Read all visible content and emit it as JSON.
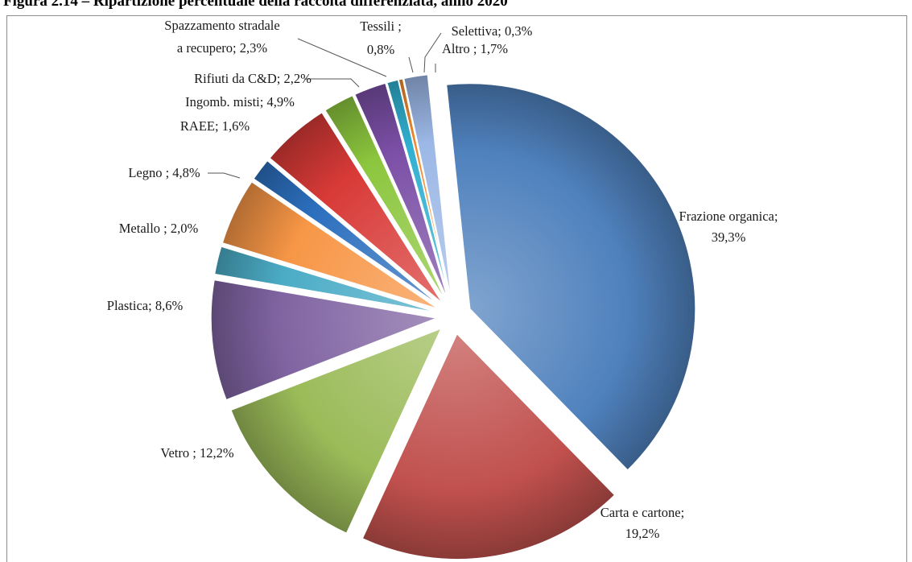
{
  "title": "Figura 2.14 – Ripartizione percentuale della raccolta differenziata, anno 2020",
  "chart_data": {
    "type": "pie",
    "title": "Figura 2.14 – Ripartizione percentuale della raccolta differenziata, anno 2020",
    "unit": "%",
    "slices": [
      {
        "key": "frazione-organica",
        "label_lines": [
          "Frazione organica;",
          "39,3%"
        ],
        "value": 39.3,
        "color": "#4f81bd"
      },
      {
        "key": "carta-cartone",
        "label_lines": [
          "Carta e cartone;",
          "19,2%"
        ],
        "value": 19.2,
        "color": "#c0504d"
      },
      {
        "key": "vetro",
        "label_lines": [
          "Vetro ; 12,2%"
        ],
        "value": 12.2,
        "color": "#9bbb59"
      },
      {
        "key": "plastica",
        "label_lines": [
          "Plastica; 8,6%"
        ],
        "value": 8.6,
        "color": "#8064a2"
      },
      {
        "key": "metallo",
        "label_lines": [
          "Metallo ; 2,0%"
        ],
        "value": 2.0,
        "color": "#4bacc6"
      },
      {
        "key": "legno",
        "label_lines": [
          "Legno ; 4,8%"
        ],
        "value": 4.8,
        "color": "#f79646"
      },
      {
        "key": "raee",
        "label_lines": [
          "RAEE; 1,6%"
        ],
        "value": 1.6,
        "color": "#2c6fbe"
      },
      {
        "key": "ingombranti-misti",
        "label_lines": [
          "Ingomb. misti; 4,9%"
        ],
        "value": 4.9,
        "color": "#d83a37"
      },
      {
        "key": "rifiuti-cd",
        "label_lines": [
          "Rifiuti da C&D; 2,2%"
        ],
        "value": 2.2,
        "color": "#8cc63e"
      },
      {
        "key": "spazzamento-stradale",
        "label_lines": [
          "Spazzamento stradale",
          "a recupero; 2,3%"
        ],
        "value": 2.3,
        "color": "#7b4fa6"
      },
      {
        "key": "tessili",
        "label_lines": [
          "Tessili ;",
          "0,8%"
        ],
        "value": 0.8,
        "color": "#31b0d0"
      },
      {
        "key": "selettiva",
        "label_lines": [
          "Selettiva; 0,3%"
        ],
        "value": 0.3,
        "color": "#f28a2e"
      },
      {
        "key": "altro",
        "label_lines": [
          "Altro ; 1,7%"
        ],
        "value": 1.7,
        "color": "#9cb8e6"
      }
    ]
  }
}
